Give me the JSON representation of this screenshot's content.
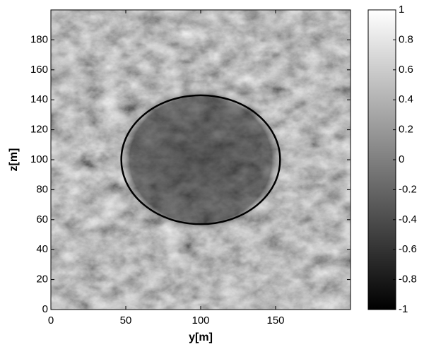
{
  "chart_data": {
    "type": "heatmap",
    "xlabel": "y[m]",
    "ylabel": "z[m]",
    "xlim": [
      0,
      200
    ],
    "xticks": [
      0,
      50,
      100,
      150
    ],
    "ylim": [
      0,
      200
    ],
    "yticks": [
      0,
      20,
      40,
      60,
      80,
      100,
      120,
      140,
      160,
      180
    ],
    "ellipse": {
      "cx": 100,
      "cy": 100,
      "rx": 53,
      "ry": 43,
      "color": "#000000"
    },
    "colorbar": {
      "lim": [
        -1,
        1
      ],
      "ticks": [
        -1,
        -0.8,
        -0.6,
        -0.4,
        -0.2,
        0,
        0.2,
        0.4,
        0.6,
        0.8,
        1
      ]
    }
  }
}
